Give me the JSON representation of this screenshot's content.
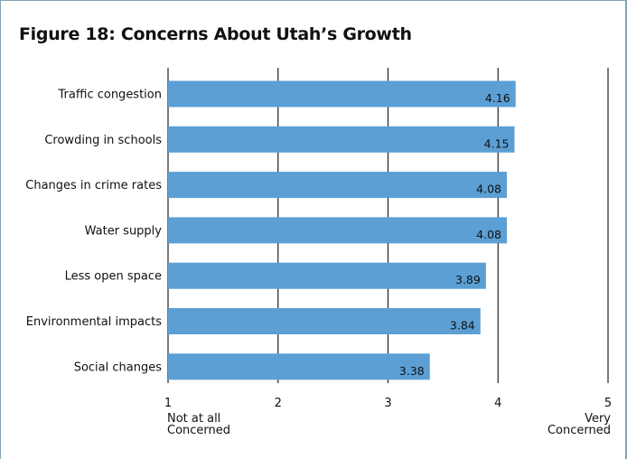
{
  "chart_data": {
    "type": "bar",
    "orientation": "horizontal",
    "title": "Figure 18: Concerns About Utah’s Growth",
    "categories": [
      "Traffic congestion",
      "Crowding in schools",
      "Changes in crime rates",
      "Water supply",
      "Less open space",
      "Environmental impacts",
      "Social changes"
    ],
    "values": [
      4.16,
      4.15,
      4.08,
      4.08,
      3.89,
      3.84,
      3.38
    ],
    "value_labels": [
      "4.16",
      "4.15",
      "4.08",
      "4.08",
      "3.89",
      "3.84",
      "3.38"
    ],
    "xlim": [
      1,
      5
    ],
    "ticks": [
      1,
      2,
      3,
      4,
      5
    ],
    "tick_labels": [
      "1",
      "2",
      "3",
      "4",
      "5"
    ],
    "scale_anchors": {
      "low": [
        "Not at all",
        "Concerned"
      ],
      "high": [
        "Very",
        "Concerned"
      ]
    },
    "grid": true,
    "bar_color": "#5b9fd4",
    "grid_color": "#222222",
    "border_color": "#7fa7b4"
  }
}
